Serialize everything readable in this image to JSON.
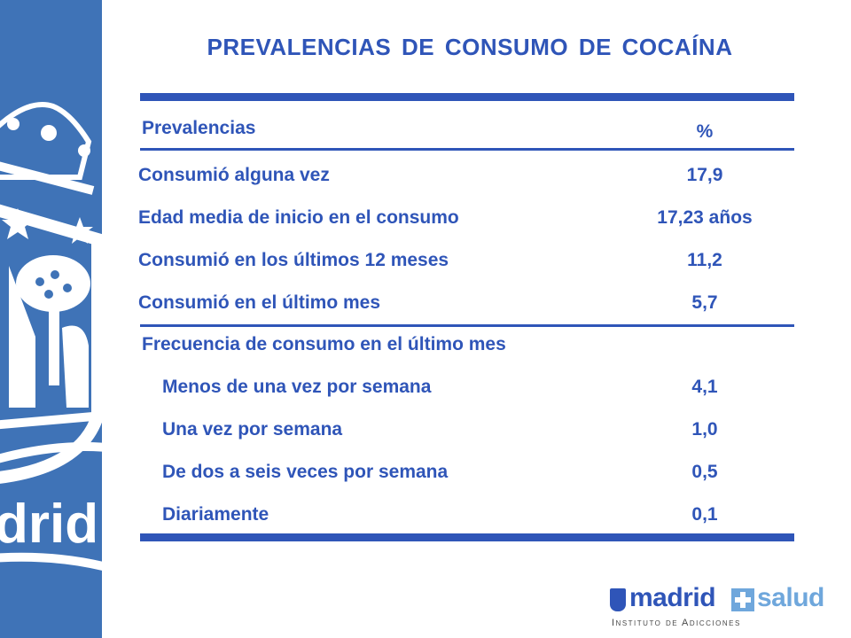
{
  "title": "PREVALENCIAS DE CONSUMO DE COCAÍNA",
  "header": {
    "label": "Prevalencias",
    "value": "%"
  },
  "rows": [
    {
      "label": "Consumió alguna vez",
      "value": "17,9"
    },
    {
      "label": "Edad media de inicio en el consumo",
      "value": "17,23 años"
    },
    {
      "label": "Consumió en los últimos 12 meses",
      "value": "11,2"
    },
    {
      "label": "Consumió en el último mes",
      "value": "5,7"
    }
  ],
  "frequency": {
    "heading": "Frecuencia de consumo en el último mes",
    "rows": [
      {
        "label": "Menos de una vez por semana",
        "value": "4,1"
      },
      {
        "label": "Una vez por semana",
        "value": "1,0"
      },
      {
        "label": "De dos a seis veces por semana",
        "value": "0,5"
      },
      {
        "label": "Diariamente",
        "value": "0,1"
      }
    ]
  },
  "side_banner": {
    "text": "drid"
  },
  "logo": {
    "part1": "madrid",
    "part2": "salud",
    "subtitle": "Instituto de Adicciones"
  },
  "colors": {
    "text": "#2f55b8",
    "side_panel": "#3f73b7",
    "logo_accent": "#6fa7dc"
  }
}
